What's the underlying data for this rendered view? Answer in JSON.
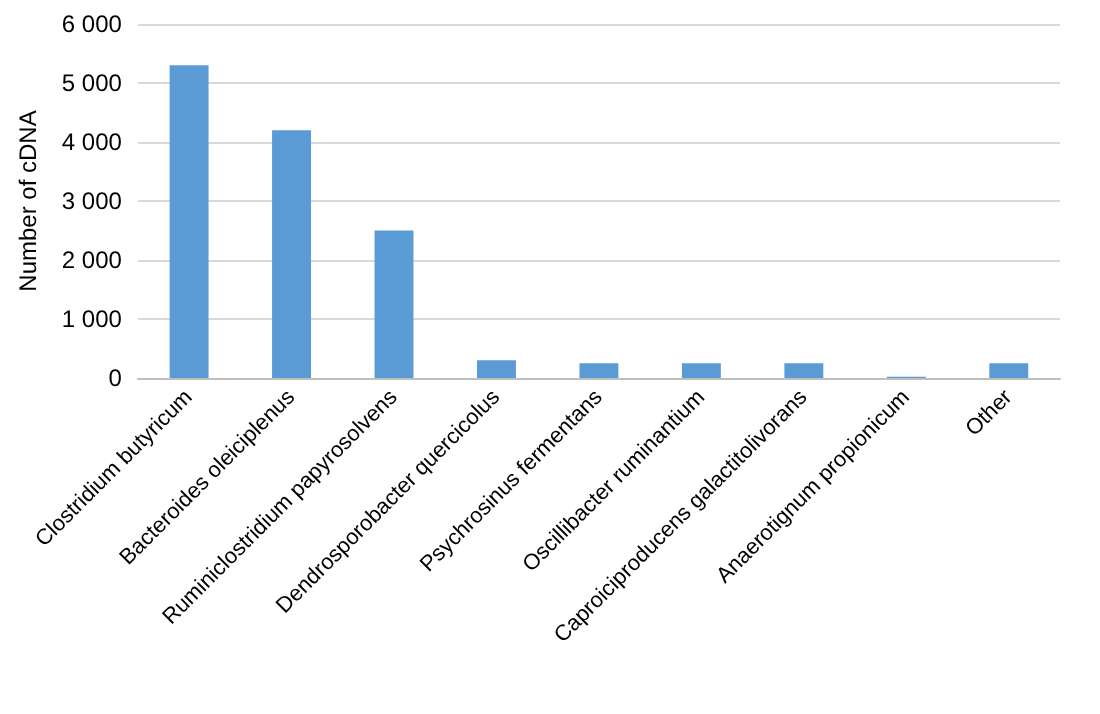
{
  "chart_data": {
    "type": "bar",
    "ylabel": "Number of cDNA",
    "categories": [
      "Clostridium butyricum",
      "Bacteroides oleiciplenus",
      "Ruminiclostridium papyrosolvens",
      "Dendrosporobacter quercicolus",
      "Psychrosinus fermentans",
      "Oscillibacter ruminantium",
      "Caproiciproducens galactitolivorans",
      "Anaerotignum propionicum",
      "Other"
    ],
    "values": [
      5300,
      4200,
      2500,
      300,
      250,
      250,
      250,
      20,
      250
    ],
    "color": "#5b9bd5",
    "ylim": [
      0,
      6000
    ],
    "yticks": [
      {
        "value": 0,
        "label": "0"
      },
      {
        "value": 1000,
        "label": "1 000"
      },
      {
        "value": 2000,
        "label": "2 000"
      },
      {
        "value": 3000,
        "label": "3 000"
      },
      {
        "value": 4000,
        "label": "4 000"
      },
      {
        "value": 5000,
        "label": "5 000"
      },
      {
        "value": 6000,
        "label": "6 000"
      }
    ],
    "grid": "y"
  }
}
